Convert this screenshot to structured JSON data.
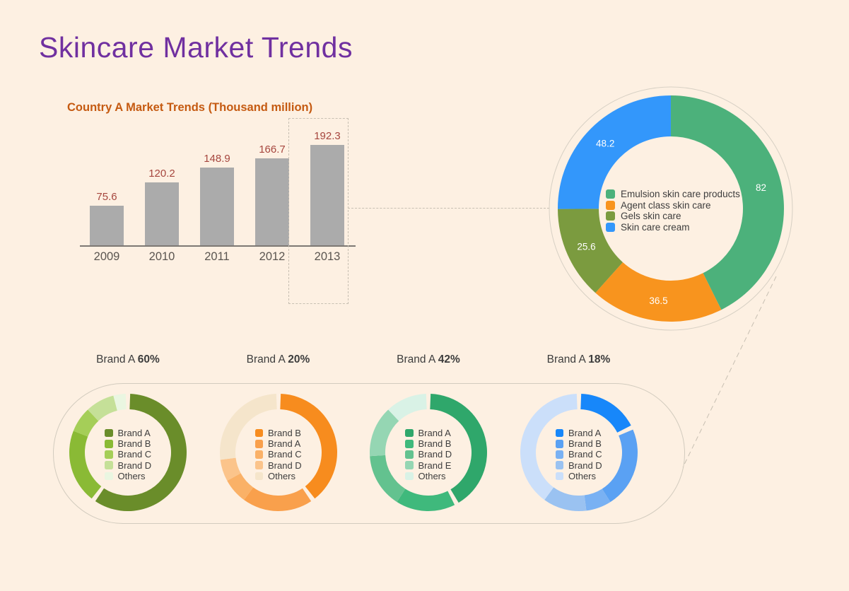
{
  "page": {
    "title": "Skincare Market Trends",
    "colors": {
      "background": "#fdf0e2",
      "title": "#7030a0",
      "chart_title": "#c55a11",
      "dashed_line": "#c7bfb2"
    }
  },
  "chart_data": [
    {
      "id": "country-a-market-trends",
      "type": "bar",
      "title": "Country A Market Trends (Thousand million)",
      "categories": [
        "2009",
        "2010",
        "2011",
        "2012",
        "2013"
      ],
      "values": [
        75.6,
        120.2,
        148.9,
        166.7,
        192.3
      ],
      "bar_color": "#ababab",
      "value_label_color": "#a6463e",
      "xlabel": "",
      "ylabel": "",
      "grid": false,
      "highlighted_category": "2013"
    },
    {
      "id": "category-share-donut",
      "type": "pie",
      "legend_position": "center",
      "total": 192.3,
      "segments": [
        {
          "label": "Emulsion skin care products",
          "value": 82,
          "color": "#4cb17b"
        },
        {
          "label": "Agent class skin care",
          "value": 36.5,
          "color": "#f8941e"
        },
        {
          "label": "Gels skin care",
          "value": 25.6,
          "color": "#7b9b3f"
        },
        {
          "label": "Skin care cream",
          "value": 48.2,
          "color": "#3397fb"
        }
      ]
    },
    {
      "id": "emulsion-brand-donut",
      "type": "pie",
      "title": {
        "brand": "Brand A",
        "share": "60%"
      },
      "legend_position": "center",
      "segments": [
        {
          "label": "Brand A",
          "value": 60,
          "color": "#6a8d2a"
        },
        {
          "label": "Brand B",
          "value": 21,
          "color": "#8aba35"
        },
        {
          "label": "Brand C",
          "value": 7,
          "color": "#a5ce58"
        },
        {
          "label": "Brand D",
          "value": 8,
          "color": "#c5e098"
        },
        {
          "label": "Others",
          "value": 4,
          "color": "#eaf6e1"
        }
      ]
    },
    {
      "id": "agent-brand-donut",
      "type": "pie",
      "title": {
        "brand": "Brand A",
        "share": "20%"
      },
      "legend_position": "center",
      "segments": [
        {
          "label": "Brand B",
          "value": 40,
          "color": "#f78c1e"
        },
        {
          "label": "Brand A",
          "value": 20,
          "color": "#f9a04c"
        },
        {
          "label": "Brand C",
          "value": 7,
          "color": "#fab167"
        },
        {
          "label": "Brand D",
          "value": 6,
          "color": "#fbc48b"
        },
        {
          "label": "Others",
          "value": 27,
          "color": "#f5e5cb"
        }
      ]
    },
    {
      "id": "gels-brand-donut",
      "type": "pie",
      "title": {
        "brand": "Brand A",
        "share": "42%"
      },
      "legend_position": "center",
      "segments": [
        {
          "label": "Brand A",
          "value": 42,
          "color": "#2fa76b"
        },
        {
          "label": "Brand B",
          "value": 17,
          "color": "#3fb97c"
        },
        {
          "label": "Brand D",
          "value": 15,
          "color": "#63c28f"
        },
        {
          "label": "Brand E",
          "value": 14,
          "color": "#95d6b3"
        },
        {
          "label": "Others",
          "value": 12,
          "color": "#d9f2e6"
        }
      ]
    },
    {
      "id": "cream-brand-donut",
      "type": "pie",
      "title": {
        "brand": "Brand A",
        "share": "18%"
      },
      "legend_position": "center",
      "segments": [
        {
          "label": "Brand A",
          "value": 18,
          "color": "#1787fa"
        },
        {
          "label": "Brand B",
          "value": 23,
          "color": "#5aa1f3"
        },
        {
          "label": "Brand C",
          "value": 7,
          "color": "#79b1f3"
        },
        {
          "label": "Brand D",
          "value": 12,
          "color": "#9ac2f1"
        },
        {
          "label": "Others",
          "value": 40,
          "color": "#cbdffa"
        }
      ]
    }
  ]
}
